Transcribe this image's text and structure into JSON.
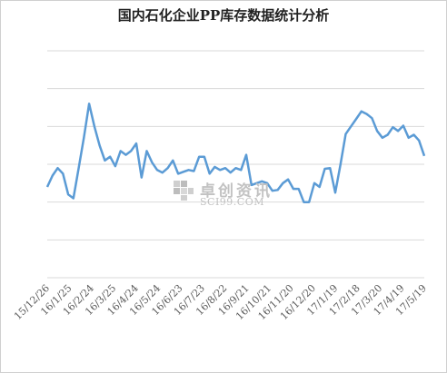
{
  "chart_data": {
    "type": "line",
    "title": "国内石化企业PP库存数据统计分析",
    "grid": true,
    "legend": "none",
    "ylim": [
      0,
      6
    ],
    "ylabels_shown": false,
    "x_tick_labels": [
      "15/12/26",
      "16/1/25",
      "16/2/24",
      "16/3/25",
      "16/4/24",
      "16/5/24",
      "16/6/23",
      "16/7/23",
      "16/8/22",
      "16/9/21",
      "16/10/21",
      "16/11/20",
      "16/12/20",
      "17/1/19",
      "17/2/18",
      "17/3/20",
      "17/4/19",
      "17/5/19"
    ],
    "series": [
      {
        "color": "#5b9bd5",
        "values": [
          2.4,
          2.7,
          2.9,
          2.75,
          2.2,
          2.1,
          2.9,
          3.7,
          4.6,
          4.0,
          3.5,
          3.1,
          3.2,
          2.95,
          3.35,
          3.25,
          3.35,
          3.55,
          2.65,
          3.35,
          3.05,
          2.85,
          2.78,
          2.9,
          3.1,
          2.75,
          2.8,
          2.85,
          2.82,
          3.2,
          3.2,
          2.75,
          2.93,
          2.85,
          2.9,
          2.78,
          2.9,
          2.85,
          3.25,
          2.45,
          2.5,
          2.55,
          2.5,
          2.3,
          2.32,
          2.5,
          2.6,
          2.35,
          2.35,
          2.0,
          2.0,
          2.5,
          2.4,
          2.88,
          2.9,
          2.25,
          3.0,
          3.8,
          4.0,
          4.2,
          4.4,
          4.33,
          4.22,
          3.88,
          3.7,
          3.78,
          3.98,
          3.88,
          4.02,
          3.7,
          3.78,
          3.63,
          3.22
        ]
      }
    ]
  },
  "watermark": {
    "main": "卓创资讯",
    "sub": "SCI99.COM"
  }
}
